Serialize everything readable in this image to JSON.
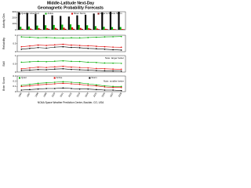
{
  "title": [
    "Middle-Latitude Next-Day",
    "Geomagnetic Probability Forecasts"
  ],
  "footer": "NOAA Space Weather Prediction Center, Boulder, CO, USA",
  "chart_data": [
    {
      "type": "bar",
      "ylabel": "Activity Obs",
      "ylim": [
        0,
        300
      ],
      "yticks": [
        0,
        100,
        200,
        300
      ],
      "legend": true,
      "series": [
        {
          "name": "Quiet to Unsettled",
          "color": "#000000",
          "values": [
            290,
            280,
            260,
            250,
            240,
            230,
            220,
            240,
            250,
            270,
            290,
            300,
            300
          ]
        },
        {
          "name": "Active",
          "color": "#00aa00",
          "values": [
            50,
            55,
            70,
            75,
            80,
            85,
            90,
            80,
            75,
            60,
            50,
            45,
            45
          ]
        },
        {
          "name": "Minor Storm",
          "color": "#dd0000",
          "values": [
            15,
            20,
            25,
            25,
            30,
            35,
            40,
            30,
            25,
            20,
            15,
            12,
            12
          ]
        },
        {
          "name": "Major to Severe Storm",
          "color": "#880000",
          "values": [
            5,
            8,
            10,
            15,
            15,
            15,
            15,
            15,
            15,
            10,
            10,
            8,
            8
          ]
        }
      ]
    },
    {
      "type": "line",
      "ylabel": "Reliability",
      "ylim": [
        0,
        1
      ],
      "yticks": [
        0,
        0.5,
        1
      ],
      "legend": false,
      "series": [
        {
          "color": "#00aa00",
          "values": [
            0.9,
            0.88,
            0.85,
            0.86,
            0.84,
            0.83,
            0.85,
            0.84,
            0.86,
            0.88,
            0.9,
            0.91,
            0.92
          ]
        },
        {
          "color": "#dd0000",
          "values": [
            0.3,
            0.35,
            0.4,
            0.38,
            0.42,
            0.45,
            0.4,
            0.38,
            0.36,
            0.33,
            0.3,
            0.28,
            0.27
          ]
        },
        {
          "color": "#000000",
          "values": [
            0.15,
            0.2,
            0.25,
            0.22,
            0.28,
            0.3,
            0.26,
            0.24,
            0.2,
            0.18,
            0.15,
            0.12,
            0.1
          ]
        }
      ]
    },
    {
      "type": "line",
      "ylabel": "Skill",
      "ylim": [
        0,
        1
      ],
      "yticks": [
        0,
        0.5,
        1
      ],
      "legend": false,
      "annotation": "Note: larger better",
      "series": [
        {
          "color": "#00aa00",
          "values": [
            0.6,
            0.62,
            0.65,
            0.63,
            0.66,
            0.68,
            0.65,
            0.64,
            0.6,
            0.58,
            0.55,
            0.54,
            0.53
          ]
        },
        {
          "color": "#dd0000",
          "values": [
            0.2,
            0.25,
            0.3,
            0.28,
            0.32,
            0.35,
            0.3,
            0.28,
            0.25,
            0.22,
            0.2,
            0.18,
            0.17
          ]
        },
        {
          "color": "#000000",
          "values": [
            0.1,
            0.12,
            0.15,
            0.14,
            0.18,
            0.2,
            0.16,
            0.14,
            0.12,
            0.1,
            0.08,
            0.07,
            0.06
          ]
        }
      ]
    },
    {
      "type": "line",
      "ylabel": "Brier Score",
      "ylim": [
        0,
        0.3
      ],
      "yticks": [
        0,
        0.1,
        0.2,
        0.3
      ],
      "legend": true,
      "annotation": "Note: smaller better",
      "categories": [
        "1996",
        "1997",
        "1998",
        "1999",
        "2000",
        "2001",
        "2002",
        "2003",
        "2004",
        "2005",
        "2006",
        "2007",
        "2008"
      ],
      "series": [
        {
          "name": "Quiet",
          "color": "#00aa00",
          "values": [
            0.12,
            0.14,
            0.16,
            0.17,
            0.18,
            0.19,
            0.18,
            0.17,
            0.15,
            0.13,
            0.11,
            0.1,
            0.1
          ]
        },
        {
          "name": "Active",
          "color": "#dd0000",
          "values": [
            0.1,
            0.11,
            0.13,
            0.14,
            0.15,
            0.16,
            0.15,
            0.14,
            0.12,
            0.11,
            0.09,
            0.08,
            0.08
          ]
        },
        {
          "name": "Storm",
          "color": "#000000",
          "values": [
            0.03,
            0.04,
            0.05,
            0.06,
            0.06,
            0.07,
            0.06,
            0.05,
            0.05,
            0.04,
            0.03,
            0.03,
            0.02
          ]
        }
      ]
    }
  ]
}
